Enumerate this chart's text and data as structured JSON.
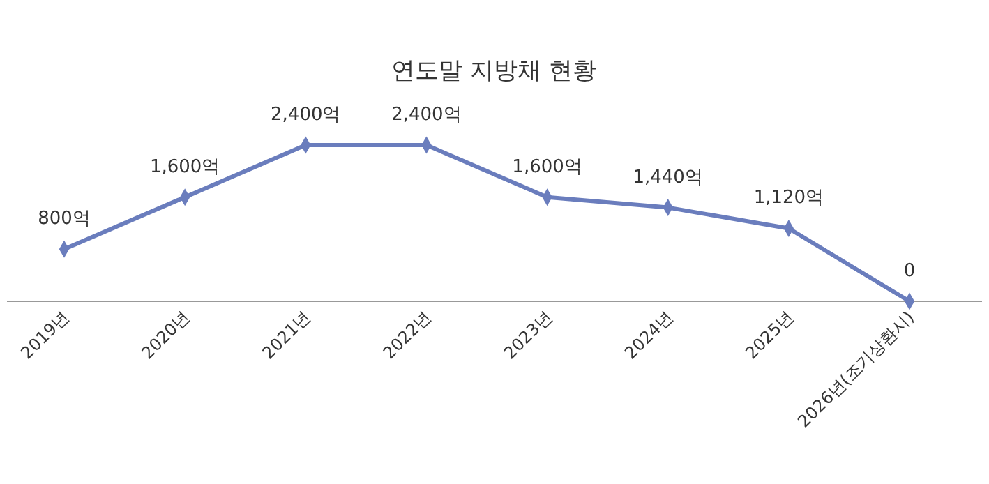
{
  "chart_data": {
    "type": "line",
    "title": "연도말 지방채 현황",
    "categories": [
      "2019년",
      "2020년",
      "2021년",
      "2022년",
      "2023년",
      "2024년",
      "2025년",
      "2026년(조기상환시)"
    ],
    "series": [
      {
        "color": "#6a7dbd",
        "values": [
          800,
          1600,
          2400,
          2400,
          1600,
          1440,
          1120,
          0
        ],
        "value_labels": [
          "800억",
          "1,600억",
          "2,400억",
          "2,400억",
          "1,600억",
          "1,440억",
          "1,120억",
          "0"
        ]
      }
    ],
    "tick_labels": "x",
    "marker": "diamond",
    "line_style": "solid"
  }
}
